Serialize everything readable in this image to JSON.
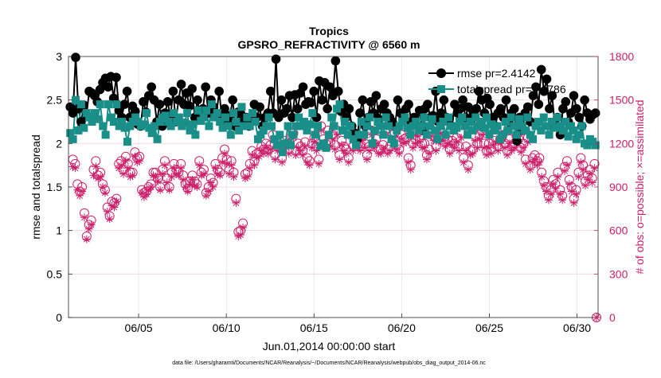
{
  "chart_data": {
    "type": "line",
    "title": "Tropics",
    "subtitle": "GPSRO_REFRACTIVITY @ 6560 m",
    "xlabel": "Jun.01,2014 00:00:00 start",
    "ylabel_left": "rmse and totalspread",
    "ylabel_right": "# of obs: o=possible; ×=assimilated",
    "footnote": "data file: /Users/gharamti/Documents/NCAR/Reanalysis/~/Documents/NCAR/Reanalysis/webpub/obs_diag_output_2014-06.nc",
    "xlim": [
      1,
      31.2
    ],
    "ylim_left": [
      0,
      3
    ],
    "ylim_right": [
      0,
      1800
    ],
    "x_ticks": [
      5,
      10,
      15,
      20,
      25,
      30
    ],
    "x_tick_labels": [
      "06/05",
      "06/10",
      "06/15",
      "06/20",
      "06/25",
      "06/30"
    ],
    "y_ticks_left": [
      0,
      0.5,
      1,
      1.5,
      2,
      2.5,
      3
    ],
    "y_tick_labels_left": [
      "0",
      "0.5",
      "1",
      "1.5",
      "2",
      "2.5",
      "3"
    ],
    "y_ticks_right": [
      0,
      300,
      600,
      900,
      1200,
      1500,
      1800
    ],
    "y_tick_labels_right": [
      "0",
      "300",
      "600",
      "900",
      "1200",
      "1500",
      "1800"
    ],
    "colors": {
      "rmse": "#000000",
      "spread": "#1a8f8a",
      "obs": "#cc1f6a",
      "grid": "#e6e6e6"
    },
    "legend": {
      "position": "top-right",
      "entries": [
        "rmse pr=2.4142",
        "totalspread pr=2.1786"
      ]
    },
    "series": [
      {
        "name": "rmse pr=2.4142",
        "marker": "filled-circle",
        "values": [
          2.42,
          2.35,
          2.99,
          2.4,
          2.25,
          2.44,
          2.33,
          2.6,
          2.58,
          2.55,
          2.48,
          2.62,
          2.7,
          2.75,
          2.65,
          2.77,
          2.52,
          2.76,
          2.38,
          2.3,
          2.45,
          2.6,
          2.3,
          2.43,
          2.37,
          2.22,
          2.2,
          2.48,
          2.36,
          2.55,
          2.65,
          2.5,
          2.25,
          2.45,
          2.2,
          2.35,
          2.48,
          2.3,
          2.6,
          2.25,
          2.5,
          2.68,
          2.45,
          2.58,
          2.43,
          2.63,
          2.3,
          2.5,
          2.3,
          2.4,
          2.65,
          2.35,
          2.5,
          2.42,
          2.33,
          2.6,
          2.3,
          2.4,
          2.25,
          2.32,
          2.5,
          2.2,
          2.36,
          2.34,
          2.28,
          2.3,
          2.2,
          2.28,
          2.45,
          2.3,
          2.42,
          2.2,
          2.3,
          2.35,
          2.6,
          2.35,
          2.97,
          2.3,
          2.5,
          2.35,
          2.4,
          2.55,
          2.3,
          2.56,
          2.4,
          2.58,
          2.65,
          2.45,
          2.48,
          2.47,
          2.6,
          2.3,
          2.72,
          2.5,
          2.7,
          2.4,
          2.65,
          2.55,
          2.95,
          2.6,
          2.37,
          2.45,
          2.3,
          2.4,
          2.2,
          2.12,
          2.05,
          2.35,
          2.5,
          2.2,
          2.3,
          2.48,
          2.35,
          2.55,
          2.28,
          2.4,
          2.45,
          2.35,
          2.3,
          2.25,
          2.2,
          2.5,
          2.35,
          2.3,
          2.4,
          2.45,
          2.25,
          2.3,
          2.2,
          2.38,
          2.15,
          2.4,
          2.45,
          2.3,
          2.32,
          2.6,
          2.25,
          2.35,
          2.5,
          2.3,
          2.28,
          2.2,
          2.45,
          2.35,
          2.4,
          2.5,
          2.3,
          2.42,
          2.28,
          2.35,
          2.4,
          2.6,
          2.5,
          2.35,
          2.52,
          2.45,
          2.3,
          2.2,
          2.35,
          2.4,
          2.3,
          2.5,
          2.25,
          2.35,
          2.4,
          2.03,
          2.3,
          2.15,
          2.35,
          2.42,
          2.25,
          2.55,
          2.65,
          2.45,
          2.85,
          2.6,
          2.74,
          2.4,
          2.55,
          2.2,
          2.3,
          2.1,
          2.4,
          2.48,
          2.25,
          2.35,
          2.55,
          2.4,
          2.3,
          2.2,
          2.5,
          2.35,
          2.28,
          2.33,
          2.35
        ]
      },
      {
        "name": "totalspread pr=2.1786",
        "marker": "filled-square",
        "values": [
          2.12,
          2.05,
          2.5,
          2.15,
          2.45,
          2.18,
          2.35,
          2.3,
          2.25,
          2.35,
          2.28,
          2.45,
          2.2,
          2.1,
          2.45,
          2.3,
          2.25,
          2.45,
          2.2,
          2.25,
          2.18,
          2.02,
          2.2,
          2.25,
          2.3,
          2.25,
          2.2,
          2.22,
          2.35,
          2.18,
          2.12,
          2.2,
          2.05,
          2.25,
          2.3,
          2.32,
          2.25,
          2.2,
          2.35,
          2.25,
          2.3,
          2.2,
          2.24,
          2.35,
          2.15,
          2.22,
          2.1,
          2.38,
          2.26,
          2.3,
          2.38,
          2.2,
          2.45,
          2.3,
          2.35,
          2.25,
          2.18,
          2.3,
          2.2,
          2.1,
          2.35,
          2.25,
          2.15,
          2.42,
          2.2,
          2.3,
          2.2,
          2.35,
          2.25,
          2.05,
          2.1,
          2.15,
          2.2,
          2.3,
          2.2,
          2.05,
          1.98,
          2.1,
          1.9,
          2.0,
          2.2,
          1.98,
          2.1,
          2.2,
          2.3,
          2.2,
          2.25,
          2.15,
          2.22,
          2.35,
          2.1,
          2.2,
          1.97,
          2.0,
          1.95,
          2.1,
          2.3,
          2.2,
          2.4,
          2.45,
          2.15,
          2.25,
          2.1,
          2.2,
          2.05,
          1.98,
          2.1,
          2.25,
          2.1,
          2.2,
          2.3,
          2.0,
          2.15,
          2.25,
          2.2,
          2.1,
          2.3,
          2.2,
          2.05,
          2.0,
          2.15,
          2.2,
          2.25,
          2.3,
          2.18,
          2.1,
          2.2,
          2.25,
          2.15,
          2.2,
          2.3,
          2.1,
          2.2,
          2.28,
          2.15,
          2.05,
          2.2,
          2.25,
          2.1,
          2.3,
          2.2,
          2.15,
          2.18,
          2.25,
          2.3,
          2.2,
          2.1,
          2.25,
          2.15,
          2.3,
          2.2,
          2.25,
          2.18,
          2.3,
          2.1,
          2.22,
          2.15,
          2.2,
          2.05,
          2.1,
          2.25,
          2.15,
          2.3,
          2.2,
          2.1,
          2.28,
          2.2,
          2.15,
          2.3,
          2.1,
          2.05,
          2.2,
          2.25,
          2.15,
          2.3,
          2.2,
          2.1,
          2.25,
          2.18,
          2.3,
          2.2,
          2.15,
          2.25,
          2.08,
          2.2,
          2.15,
          2.05,
          2.1,
          2.2,
          2.0,
          1.98,
          2.05,
          2.02,
          1.98
        ]
      },
      {
        "name": "possible obs",
        "marker": "open-circle",
        "axis": "right",
        "values": [
          1090,
          1060,
          920,
          870,
          900,
          720,
          560,
          640,
          670,
          1020,
          1080,
          980,
          1000,
          920,
          880,
          760,
          700,
          800,
          790,
          820,
          1060,
          1080,
          1020,
          1110,
          1060,
          1000,
          1000,
          1140,
          1100,
          1110,
          880,
          860,
          870,
          900,
          920,
          1000,
          1000,
          960,
          900,
          1020,
          1080,
          960,
          900,
          1000,
          1060,
          1020,
          1000,
          1060,
          980,
          920,
          890,
          940,
          980,
          940,
          920,
          1080,
          1000,
          1020,
          860,
          900,
          960,
          930,
          1060,
          1020,
          1000,
          1100,
          1160,
          1090,
          1020,
          1080,
          1000,
          820,
          590,
          600,
          650,
          990,
          1000,
          1060,
          1150,
          1080,
          1130,
          1140,
          1180,
          1160,
          1200,
          1160,
          1190,
          1260,
          1120,
          1180,
          1220,
          1100,
          1220,
          1200,
          1160,
          1280,
          1270,
          1150,
          1200,
          1180,
          1150,
          1210,
          1100,
          1080,
          1200,
          1240,
          1180,
          1090,
          1320,
          1230,
          1200,
          1290,
          1210,
          1260,
          1190,
          1290,
          1120,
          1220,
          1180,
          1160,
          1100,
          1280,
          1180,
          1240,
          1200,
          1180,
          1250,
          1200,
          1120,
          1180,
          1290,
          1200,
          1230,
          1160,
          1160,
          1190,
          1290,
          1160,
          1180,
          1260,
          1270,
          1190,
          1160,
          1260,
          1230,
          1240,
          1100,
          1050,
          1200,
          1230,
          1280,
          1240,
          1200,
          1200,
          1120,
          1160,
          1280,
          1250,
          1180,
          1240,
          1300,
          1250,
          1210,
          1230,
          1160,
          1220,
          1200,
          1240,
          1180,
          1270,
          1100,
          1180,
          1050,
          1150,
          1160,
          1250,
          1200,
          1260,
          1290,
          1200,
          1150,
          1200,
          1160,
          1220,
          1240,
          1180,
          1230,
          1260,
          1200,
          1150,
          1230,
          1180,
          1200,
          1250,
          1230,
          1170,
          1200,
          1090,
          1240,
          1050,
          1100,
          1120,
          1080,
          1100,
          1000,
          940,
          900,
          840,
          880,
          950,
          920,
          1000,
          880,
          840,
          1040,
          1080,
          950,
          900,
          820,
          880,
          1000,
          1100,
          1050,
          940,
          980,
          1020,
          960,
          1060,
          0
        ]
      },
      {
        "name": "assimilated obs",
        "marker": "star",
        "axis": "right",
        "values": [
          1040,
          1030,
          880,
          840,
          870,
          690,
          540,
          610,
          640,
          980,
          1040,
          960,
          970,
          900,
          860,
          730,
          680,
          770,
          760,
          800,
          1030,
          1050,
          990,
          1080,
          1030,
          970,
          980,
          1110,
          1070,
          1080,
          860,
          830,
          850,
          880,
          900,
          980,
          970,
          940,
          880,
          990,
          1050,
          930,
          880,
          970,
          1030,
          990,
          980,
          1030,
          950,
          900,
          870,
          920,
          950,
          910,
          900,
          1050,
          980,
          990,
          840,
          870,
          930,
          900,
          1030,
          990,
          980,
          1070,
          1130,
          1060,
          990,
          1050,
          970,
          790,
          560,
          570,
          620,
          960,
          970,
          1030,
          1120,
          1050,
          1100,
          1110,
          1150,
          1130,
          1170,
          1130,
          1160,
          1230,
          1090,
          1150,
          1190,
          1070,
          1190,
          1170,
          1130,
          1250,
          1240,
          1120,
          1170,
          1150,
          1120,
          1180,
          1070,
          1050,
          1170,
          1210,
          1150,
          1060,
          1290,
          1200,
          1170,
          1260,
          1180,
          1230,
          1160,
          1260,
          1090,
          1190,
          1150,
          1130,
          1070,
          1250,
          1150,
          1210,
          1170,
          1150,
          1220,
          1170,
          1090,
          1150,
          1260,
          1170,
          1200,
          1130,
          1130,
          1160,
          1260,
          1130,
          1150,
          1230,
          1240,
          1160,
          1130,
          1230,
          1200,
          1210,
          1070,
          1020,
          1170,
          1200,
          1250,
          1210,
          1170,
          1170,
          1090,
          1130,
          1250,
          1220,
          1150,
          1210,
          1270,
          1220,
          1180,
          1200,
          1130,
          1190,
          1170,
          1210,
          1150,
          1240,
          1070,
          1150,
          1020,
          1120,
          1130,
          1220,
          1170,
          1230,
          1260,
          1170,
          1120,
          1170,
          1130,
          1190,
          1210,
          1150,
          1200,
          1230,
          1170,
          1120,
          1200,
          1150,
          1170,
          1220,
          1200,
          1140,
          1170,
          1060,
          1210,
          1020,
          1070,
          1090,
          1050,
          1070,
          970,
          910,
          870,
          810,
          850,
          920,
          890,
          970,
          850,
          810,
          1010,
          1050,
          920,
          870,
          790,
          850,
          970,
          1070,
          1020,
          910,
          950,
          990,
          930,
          1030,
          0
        ]
      }
    ]
  }
}
